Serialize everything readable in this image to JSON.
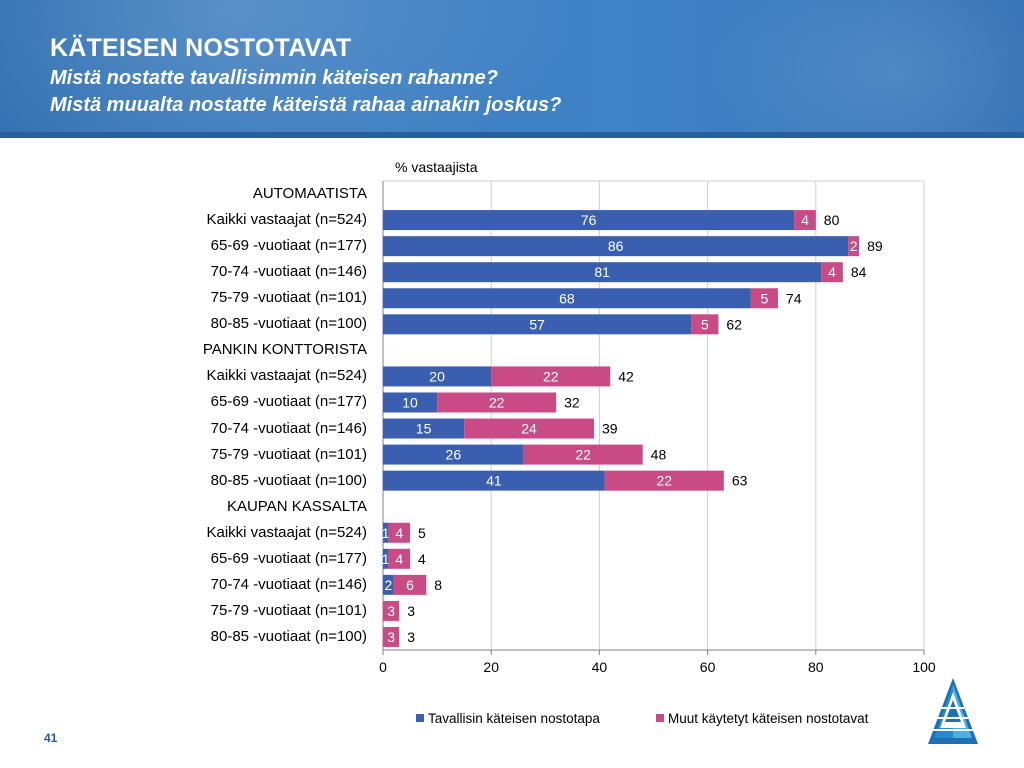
{
  "header": {
    "title": "KÄTEISEN NOSTOTAVAT",
    "subtitle1": "Mistä nostatte tavallisimmin käteisen rahanne?",
    "subtitle2": "Mistä muualta nostatte käteistä rahaa ainakin joskus?"
  },
  "chart_data": {
    "type": "bar",
    "orientation": "horizontal",
    "stacked": true,
    "unit_label": "% vastaajista",
    "xlim": [
      0,
      100
    ],
    "xticks": [
      0,
      20,
      40,
      60,
      80,
      100
    ],
    "grid": true,
    "legend_position": "bottom",
    "categories": [
      "AUTOMAATISTA",
      "Kaikki vastaajat (n=524)",
      "65-69 -vuotiaat (n=177)",
      "70-74 -vuotiaat (n=146)",
      "75-79 -vuotiaat (n=101)",
      "80-85 -vuotiaat (n=100)",
      "PANKIN KONTTORISTA",
      "Kaikki vastaajat (n=524)",
      "65-69 -vuotiaat (n=177)",
      "70-74 -vuotiaat (n=146)",
      "75-79 -vuotiaat (n=101)",
      "80-85 -vuotiaat (n=100)",
      "KAUPAN KASSALTA",
      "Kaikki vastaajat (n=524)",
      "65-69 -vuotiaat (n=177)",
      "70-74 -vuotiaat (n=146)",
      "75-79 -vuotiaat (n=101)",
      "80-85 -vuotiaat (n=100)"
    ],
    "series": [
      {
        "name": "Tavallisin käteisen nostotapa",
        "color": "#3a5fb0",
        "values": [
          null,
          76,
          86,
          81,
          68,
          57,
          null,
          20,
          10,
          15,
          26,
          41,
          null,
          1,
          1,
          2,
          0,
          0
        ]
      },
      {
        "name": "Muut käytetyt käteisen nostotavat",
        "color": "#c94b86",
        "values": [
          null,
          4,
          2,
          4,
          5,
          5,
          null,
          22,
          22,
          24,
          22,
          22,
          null,
          4,
          4,
          6,
          3,
          3
        ]
      }
    ],
    "totals": [
      null,
      80,
      89,
      84,
      74,
      62,
      null,
      42,
      32,
      39,
      48,
      63,
      null,
      5,
      4,
      8,
      3,
      3
    ]
  },
  "footer": {
    "page_number": "41"
  }
}
